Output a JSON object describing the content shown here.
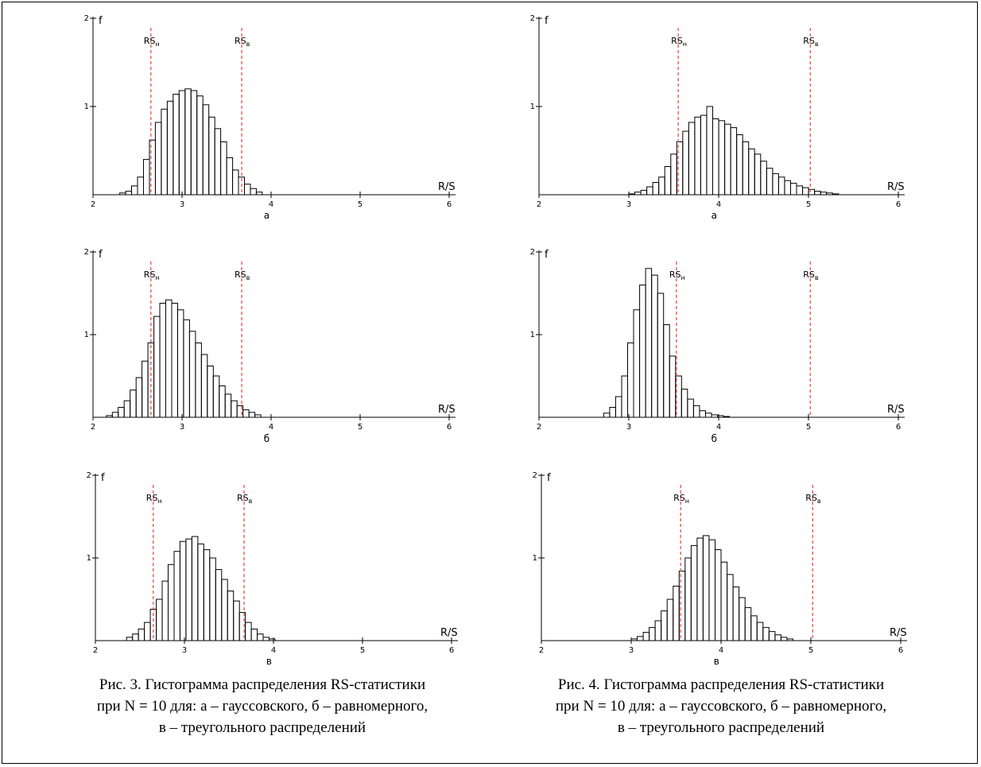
{
  "colors": {
    "axes": "#000000",
    "bars": "#000000",
    "threshold_lines": "#e8423c",
    "background": "#ffffff"
  },
  "chart_data": [
    {
      "id": "fig3a",
      "type": "bar",
      "panel_label": "а",
      "xlabel": "R/S",
      "ylabel": "f",
      "xlim": [
        2,
        6
      ],
      "ylim": [
        0,
        2
      ],
      "xticks": [
        "2",
        "3",
        "4",
        "5",
        "6"
      ],
      "yticks": [
        "1",
        "2"
      ],
      "bin_start": 2.3,
      "bin_width": 0.0667,
      "values": [
        0.02,
        0.04,
        0.1,
        0.2,
        0.4,
        0.62,
        0.82,
        0.97,
        1.06,
        1.14,
        1.18,
        1.2,
        1.18,
        1.12,
        1.02,
        0.88,
        0.75,
        0.6,
        0.42,
        0.28,
        0.2,
        0.12,
        0.07,
        0.03
      ],
      "thresholds": [
        {
          "label": "RS",
          "sub": "н",
          "x": 2.65
        },
        {
          "label": "RS",
          "sub": "в",
          "x": 3.67
        }
      ]
    },
    {
      "id": "fig3b",
      "type": "bar",
      "panel_label": "б",
      "xlabel": "R/S",
      "ylabel": "f",
      "xlim": [
        2,
        6
      ],
      "ylim": [
        0,
        2
      ],
      "xticks": [
        "2",
        "3",
        "4",
        "5",
        "6"
      ],
      "yticks": [
        "1",
        "2"
      ],
      "bin_start": 2.15,
      "bin_width": 0.0667,
      "values": [
        0.02,
        0.06,
        0.12,
        0.2,
        0.33,
        0.48,
        0.68,
        0.9,
        1.22,
        1.38,
        1.42,
        1.38,
        1.3,
        1.18,
        1.04,
        0.9,
        0.76,
        0.62,
        0.5,
        0.38,
        0.28,
        0.2,
        0.14,
        0.09,
        0.06,
        0.03
      ],
      "thresholds": [
        {
          "label": "RS",
          "sub": "н",
          "x": 2.65
        },
        {
          "label": "RS",
          "sub": "в",
          "x": 3.67
        }
      ]
    },
    {
      "id": "fig3v",
      "type": "bar",
      "panel_label": "в",
      "xlabel": "R/S",
      "ylabel": "f",
      "xlim": [
        2,
        6
      ],
      "ylim": [
        0,
        2
      ],
      "xticks": [
        "2",
        "3",
        "4",
        "5",
        "6"
      ],
      "yticks": [
        "1",
        "2"
      ],
      "bin_start": 2.35,
      "bin_width": 0.0667,
      "values": [
        0.04,
        0.08,
        0.14,
        0.22,
        0.38,
        0.5,
        0.72,
        0.92,
        1.08,
        1.2,
        1.23,
        1.26,
        1.17,
        1.1,
        1.0,
        0.86,
        0.74,
        0.6,
        0.48,
        0.34,
        0.22,
        0.14,
        0.08,
        0.04,
        0.02
      ],
      "thresholds": [
        {
          "label": "RS",
          "sub": "н",
          "x": 2.65
        },
        {
          "label": "RS",
          "sub": "в",
          "x": 3.67
        }
      ]
    },
    {
      "id": "fig4a",
      "type": "bar",
      "panel_label": "а",
      "xlabel": "R/S",
      "ylabel": "f",
      "xlim": [
        2,
        6
      ],
      "ylim": [
        0,
        2
      ],
      "xticks": [
        "2",
        "3",
        "4",
        "5",
        "6"
      ],
      "yticks": [
        "1",
        "2"
      ],
      "bin_start": 3.0,
      "bin_width": 0.0667,
      "values": [
        0.01,
        0.03,
        0.05,
        0.09,
        0.14,
        0.2,
        0.32,
        0.46,
        0.6,
        0.72,
        0.82,
        0.88,
        0.9,
        1.0,
        0.86,
        0.84,
        0.8,
        0.76,
        0.68,
        0.6,
        0.52,
        0.46,
        0.38,
        0.3,
        0.24,
        0.2,
        0.16,
        0.13,
        0.1,
        0.08,
        0.06,
        0.04,
        0.03,
        0.02,
        0.01
      ],
      "thresholds": [
        {
          "label": "RS",
          "sub": "н",
          "x": 3.55
        },
        {
          "label": "RS",
          "sub": "в",
          "x": 5.02
        }
      ]
    },
    {
      "id": "fig4b",
      "type": "bar",
      "panel_label": "б",
      "xlabel": "R/S",
      "ylabel": "f",
      "xlim": [
        2,
        6
      ],
      "ylim": [
        0,
        2
      ],
      "xticks": [
        "2",
        "3",
        "4",
        "5",
        "6"
      ],
      "yticks": [
        "1",
        "2"
      ],
      "bin_start": 2.72,
      "bin_width": 0.0667,
      "values": [
        0.05,
        0.12,
        0.25,
        0.5,
        0.9,
        1.3,
        1.6,
        1.8,
        1.72,
        1.5,
        1.12,
        0.74,
        0.5,
        0.34,
        0.22,
        0.14,
        0.08,
        0.05,
        0.03,
        0.02,
        0.01
      ],
      "thresholds": [
        {
          "label": "RS",
          "sub": "н",
          "x": 3.53
        },
        {
          "label": "RS",
          "sub": "в",
          "x": 5.02
        }
      ]
    },
    {
      "id": "fig4v",
      "type": "bar",
      "panel_label": "в",
      "xlabel": "R/S",
      "ylabel": "f",
      "xlim": [
        2,
        6
      ],
      "ylim": [
        0,
        2
      ],
      "xticks": [
        "2",
        "3",
        "4",
        "5",
        "6"
      ],
      "yticks": [
        "1",
        "2"
      ],
      "bin_start": 3.0,
      "bin_width": 0.0667,
      "values": [
        0.02,
        0.05,
        0.1,
        0.16,
        0.24,
        0.36,
        0.5,
        0.66,
        0.84,
        1.0,
        1.15,
        1.24,
        1.27,
        1.22,
        1.1,
        0.95,
        0.8,
        0.65,
        0.52,
        0.4,
        0.3,
        0.22,
        0.16,
        0.11,
        0.07,
        0.04,
        0.02
      ],
      "thresholds": [
        {
          "label": "RS",
          "sub": "н",
          "x": 3.55
        },
        {
          "label": "RS",
          "sub": "в",
          "x": 5.02
        }
      ]
    }
  ],
  "captions": {
    "fig3": {
      "line1": "Рис. 3. Гистограмма распределения RS-статистики",
      "line2": "при N = 10 для: а – гауссовского, б – равномерного,",
      "line3": "в – треугольного распределений"
    },
    "fig4": {
      "line1": "Рис. 4. Гистограмма распределения RS-статистики",
      "line2": "при N = 10 для: а – гауссовского, б – равномерного,",
      "line3": "в – треугольного распределений"
    }
  }
}
